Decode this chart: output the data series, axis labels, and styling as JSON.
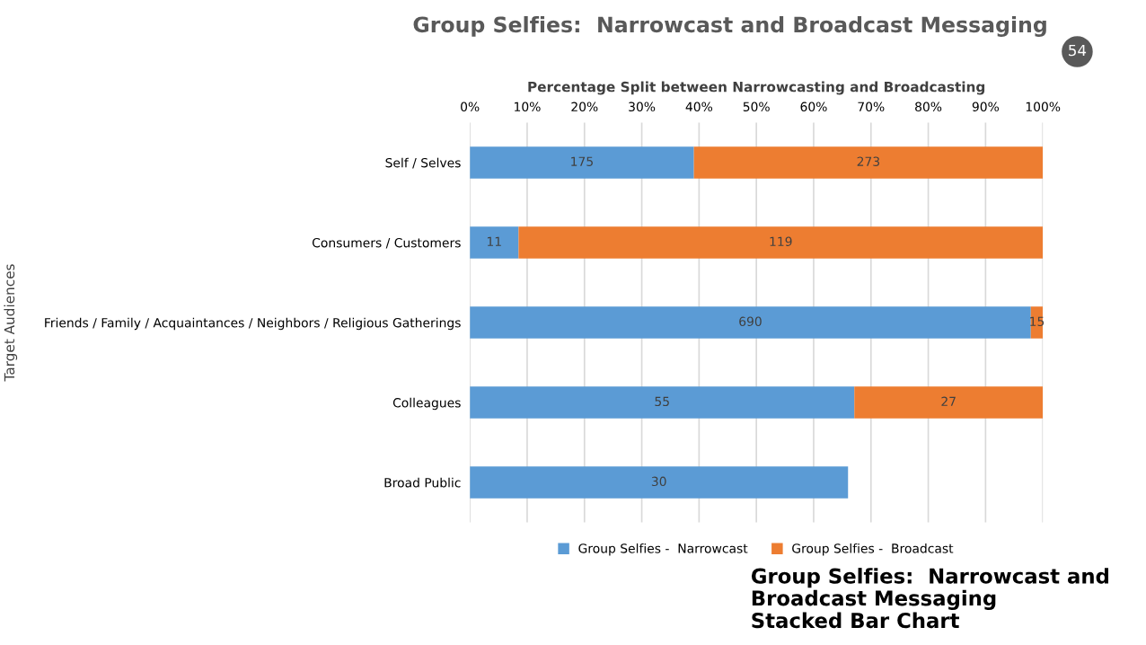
{
  "chart_data": {
    "type": "bar",
    "orientation": "horizontal",
    "stacked": true,
    "title": "Group Selfies:  Narrowcast and Broadcast Messaging",
    "xlabel": "Percentage Split between Narrowcasting and Broadcasting",
    "ylabel": "Target Audiences",
    "categories": [
      "Self / Selves",
      "Consumers / Customers",
      "Friends / Family / Acquaintances / Neighbors / Religious Gatherings",
      "Colleagues",
      "Broad Public"
    ],
    "series": [
      {
        "name": "Group Selfies -  Narrowcast",
        "color": "#5b9bd5",
        "values": [
          39.1,
          8.5,
          97.9,
          67.1,
          66
        ]
      },
      {
        "name": "Group Selfies -  Broadcast",
        "color": "#ed7d31",
        "values": [
          60.9,
          91.5,
          2.1,
          32.9,
          null
        ]
      }
    ],
    "xlim": [
      0,
      100
    ],
    "xticks": [
      {
        "value": 0,
        "label": "0%"
      },
      {
        "value": 10,
        "label": "10%"
      },
      {
        "value": 20,
        "label": "20%"
      },
      {
        "value": 30,
        "label": "30%"
      },
      {
        "value": 40,
        "label": "40%"
      },
      {
        "value": 50,
        "label": "50%"
      },
      {
        "value": 60,
        "label": "60%"
      },
      {
        "value": 70,
        "label": "70%"
      },
      {
        "value": 80,
        "label": "80%"
      },
      {
        "value": 90,
        "label": "90%"
      },
      {
        "value": 100,
        "label": "100%"
      }
    ],
    "grid": "x",
    "legend": "bottom",
    "annotations": [
      "Group Selfies:  Narrowcast and\nBroadcast Messaging\nStacked Bar Chart",
      "54",
      "175",
      "273",
      "11",
      "119",
      "690",
      "15",
      "55",
      "27",
      "30"
    ]
  }
}
